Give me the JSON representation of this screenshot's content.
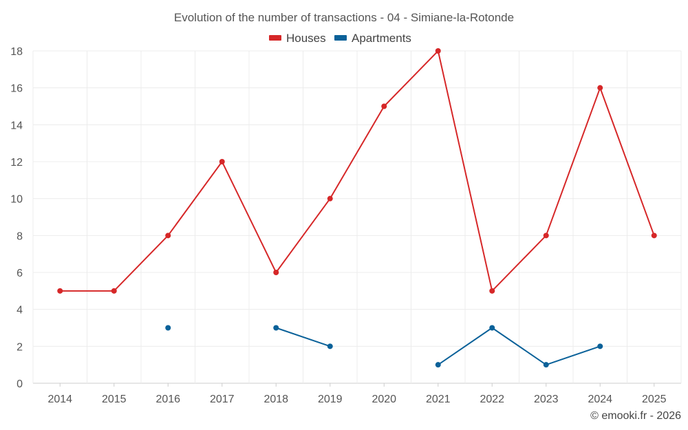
{
  "chart_data": {
    "type": "line",
    "title": "Evolution of the number of transactions - 04 - Simiane-la-Rotonde",
    "categories": [
      "2014",
      "2015",
      "2016",
      "2017",
      "2018",
      "2019",
      "2020",
      "2021",
      "2022",
      "2023",
      "2024",
      "2025"
    ],
    "ylim": [
      0,
      18
    ],
    "yticks": [
      0,
      2,
      4,
      6,
      8,
      10,
      12,
      14,
      16,
      18
    ],
    "grid": true,
    "legend_position": "top-center",
    "series": [
      {
        "name": "Houses",
        "color": "#d62728",
        "values": [
          5,
          5,
          8,
          12,
          6,
          10,
          15,
          18,
          5,
          8,
          16,
          8
        ]
      },
      {
        "name": "Apartments",
        "color": "#0a6199",
        "values": [
          null,
          null,
          3,
          null,
          3,
          2,
          null,
          1,
          3,
          1,
          2,
          null
        ]
      }
    ]
  },
  "credit": "© emooki.fr - 2026"
}
